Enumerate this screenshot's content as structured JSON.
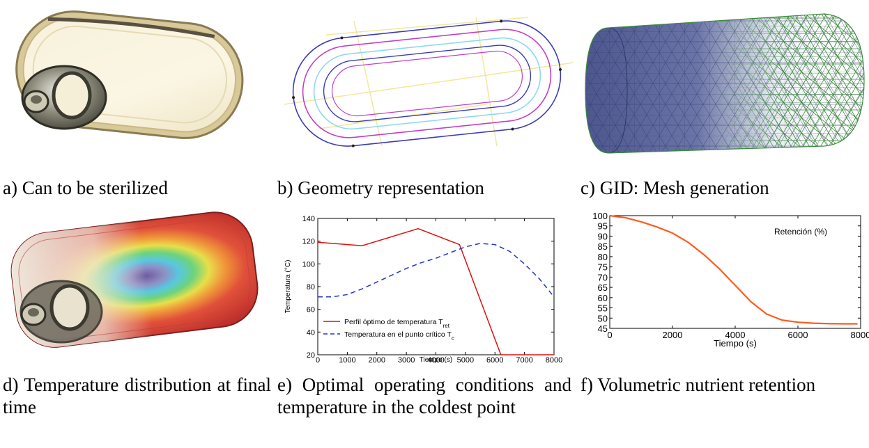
{
  "captions": {
    "a": "a) Can to be sterilized",
    "b": "b) Geometry representation",
    "c": "c) GID: Mesh generation",
    "d": "d) Temperature distribution at final time",
    "e": "e) Optimal operating conditions and temperature in the coldest point",
    "f": "f) Volumetric nutrient retention"
  },
  "colors": {
    "optimal_profile": "#dd1111",
    "critical_point": "#2233cc",
    "retention": "#ff5a1e",
    "mesh_blue": "#55609c",
    "mesh_green": "#3c8a3c"
  },
  "chart_data": [
    {
      "type": "line",
      "xlabel": "Tiempo (s)",
      "ylabel": "Temperatura (°C)",
      "xlim": [
        0,
        8000
      ],
      "ylim": [
        20,
        140
      ],
      "xticks": [
        "0",
        "1000",
        "2000",
        "3000",
        "4000",
        "5000",
        "6000",
        "7000",
        "8000"
      ],
      "yticks": [
        "20",
        "40",
        "60",
        "80",
        "100",
        "120",
        "140"
      ],
      "legend_position": "bottom-left",
      "series": [
        {
          "name": "Perfil óptimo de temperatura T",
          "name_sub": "ret",
          "style": "solid",
          "x": [
            0,
            1500,
            3400,
            4800,
            6200,
            8000
          ],
          "y": [
            119,
            116,
            131,
            117,
            20,
            20
          ]
        },
        {
          "name": "Temperatura en el punto crítico T",
          "name_sub": "c",
          "style": "dashed",
          "x": [
            0,
            500,
            1000,
            1500,
            2000,
            2500,
            3000,
            3500,
            4000,
            4500,
            5000,
            5500,
            6000,
            6500,
            7000,
            7500,
            8000
          ],
          "y": [
            71,
            71,
            73,
            78,
            84,
            90,
            96,
            101,
            105,
            110,
            115,
            118,
            117,
            111,
            100,
            87,
            71
          ]
        }
      ]
    },
    {
      "type": "line",
      "xlabel": "Tiempo (s)",
      "ylabel": "",
      "xlim": [
        0,
        8000
      ],
      "ylim": [
        45,
        100
      ],
      "xticks": [
        "0",
        "2000",
        "4000",
        "6000",
        "8000"
      ],
      "yticks": [
        "45",
        "50",
        "55",
        "60",
        "65",
        "70",
        "75",
        "80",
        "85",
        "90",
        "95",
        "100"
      ],
      "legend_position": "top-right",
      "series": [
        {
          "name": "Retención (%)",
          "style": "solid",
          "x": [
            0,
            500,
            1000,
            1500,
            2000,
            2500,
            3000,
            3500,
            4000,
            4500,
            5000,
            5500,
            6000,
            6500,
            7000,
            7500,
            7900
          ],
          "y": [
            100,
            99,
            97,
            94.5,
            91.5,
            87,
            81,
            74,
            66,
            58,
            52,
            49,
            48,
            47.5,
            47.3,
            47.2,
            47.2
          ]
        }
      ]
    }
  ]
}
